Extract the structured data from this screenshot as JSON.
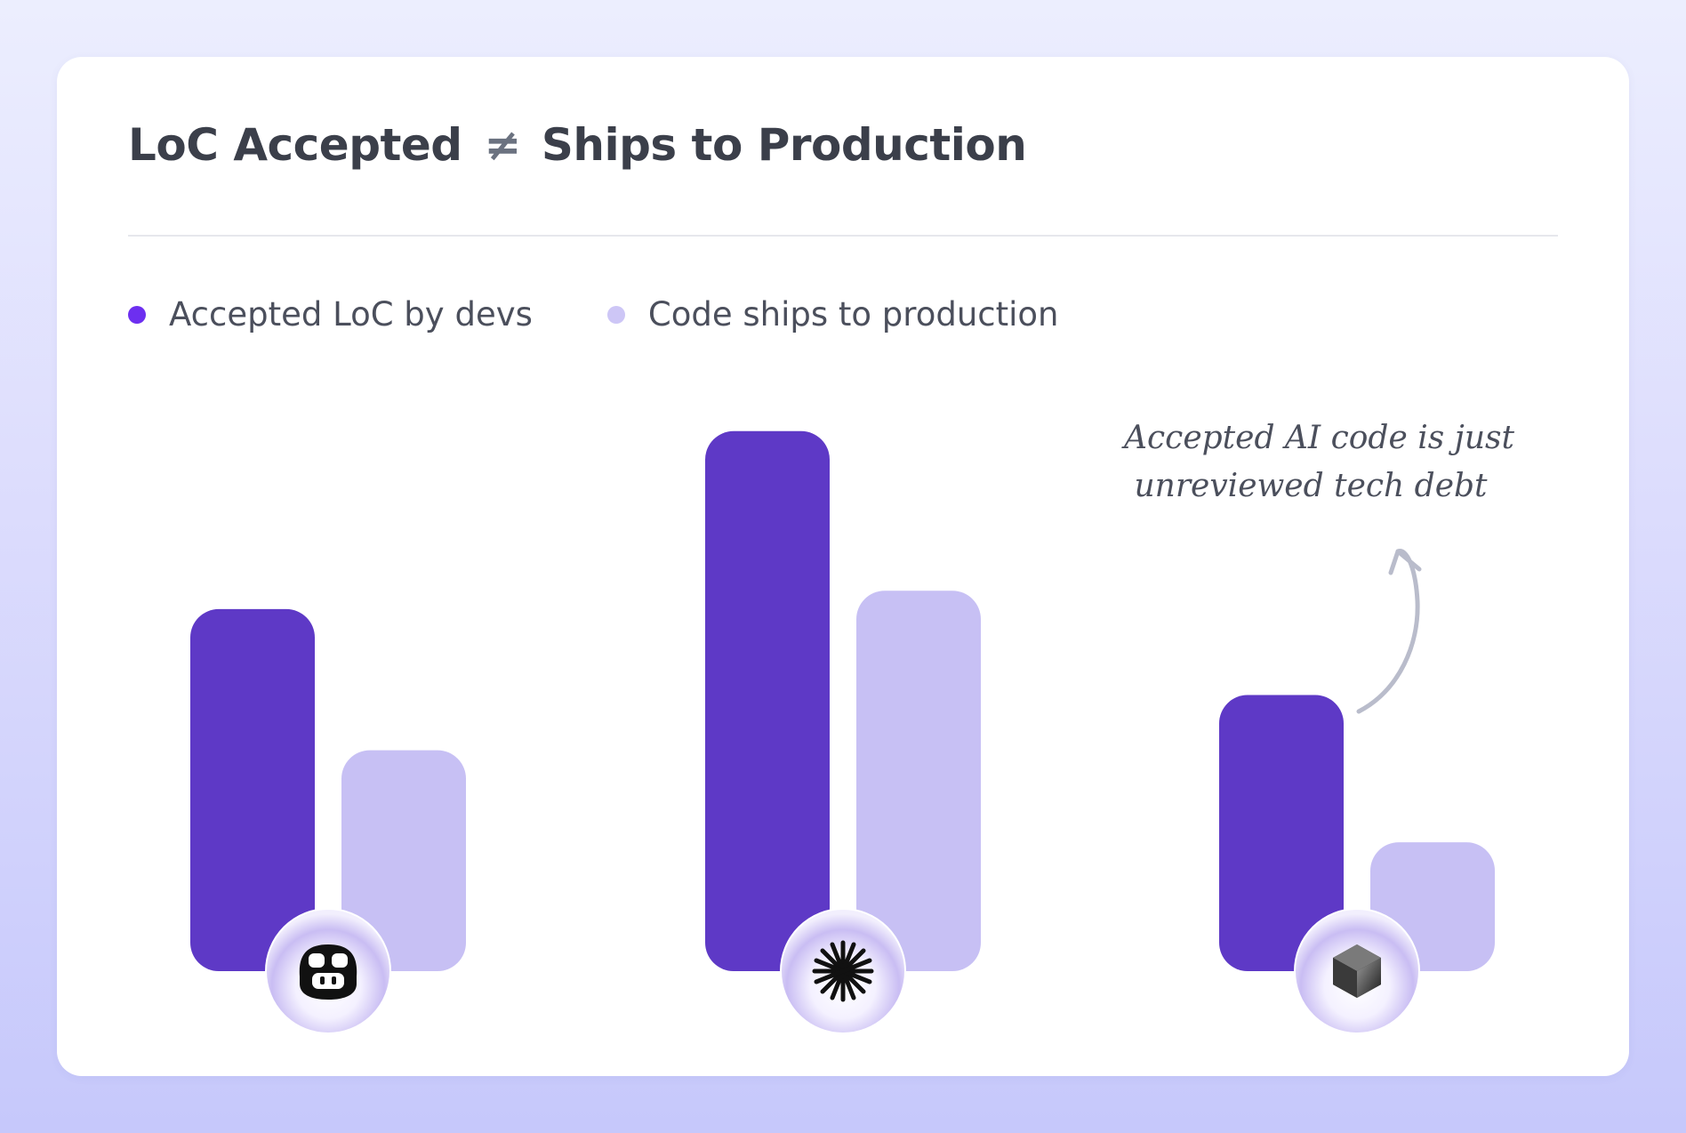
{
  "title_left": "LoC Accepted",
  "title_symbol": "≠",
  "title_right": "Ships to Production",
  "legend": [
    {
      "label": "Accepted LoC by devs",
      "color": "#6d2ff0"
    },
    {
      "label": "Code ships to production",
      "color": "#cdc6f6"
    }
  ],
  "annotation": {
    "line1": "Accepted AI code is just",
    "line2": "unreviewed tech debt"
  },
  "chart_data": {
    "type": "bar",
    "categories": [
      "copilot-icon",
      "claude-icon",
      "cursor-icon"
    ],
    "series": [
      {
        "name": "Accepted LoC by devs",
        "color": "#5e39c6",
        "values": [
          59,
          88,
          45
        ]
      },
      {
        "name": "Code ships to production",
        "color": "#c7c0f4",
        "values": [
          36,
          62,
          21
        ]
      }
    ],
    "ylim": [
      0,
      100
    ],
    "grid": false,
    "legend_position": "top-left"
  }
}
